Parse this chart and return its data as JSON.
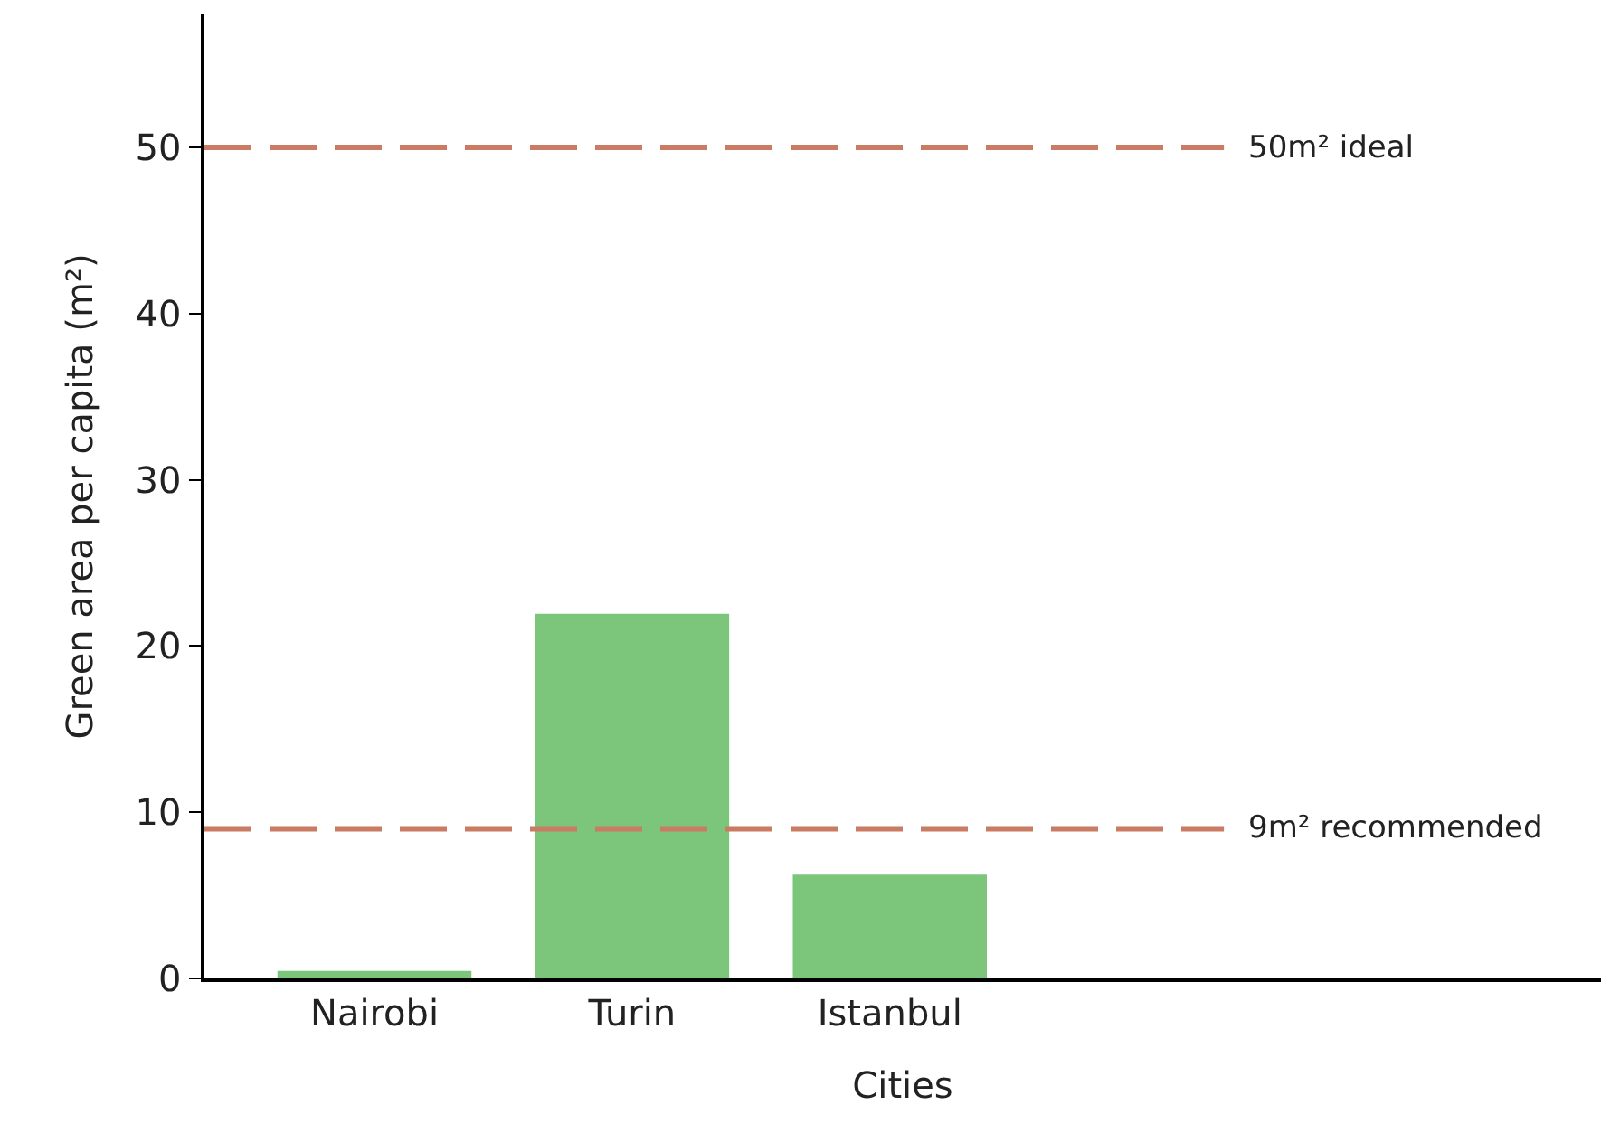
{
  "chart_data": {
    "type": "bar",
    "xlabel": "Cities",
    "ylabel": "Green area per capita (m²)",
    "categories": [
      "Nairobi",
      "Turin",
      "Istanbul"
    ],
    "values": [
      0.5,
      22,
      6.3
    ],
    "color": "#7bc67a",
    "ylim": [
      0,
      58
    ],
    "yticks": [
      0,
      10,
      20,
      30,
      40,
      50
    ],
    "ref_lines": [
      {
        "axis": "y",
        "value": 50,
        "label": "50m² ideal",
        "color": "#c97b63",
        "line_style": "dashed"
      },
      {
        "axis": "y",
        "value": 9,
        "label": "9m² recommended",
        "color": "#c97b63",
        "line_style": "dashed"
      }
    ]
  }
}
